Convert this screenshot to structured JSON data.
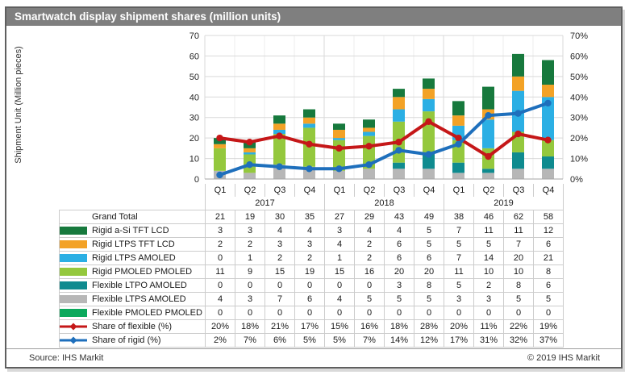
{
  "title": "Smartwatch display shipment shares (million units)",
  "footer": {
    "source": "Source: IHS Markit",
    "copyright": "© 2019 IHS Markit"
  },
  "chart_data": {
    "type": "combo",
    "subtype": "stacked-bar + line",
    "left_axis": {
      "label": "Shipment Unit (Million pieces)",
      "min": 0,
      "max": 70,
      "step": 10
    },
    "right_axis": {
      "min": 0,
      "max": 70,
      "step": 10,
      "format": "percent"
    },
    "grid": true,
    "year_groups": [
      {
        "year": "2017",
        "quarters": [
          "Q1",
          "Q2",
          "Q3",
          "Q4"
        ]
      },
      {
        "year": "2018",
        "quarters": [
          "Q1",
          "Q2",
          "Q3",
          "Q4"
        ]
      },
      {
        "year": "2019",
        "quarters": [
          "Q1",
          "Q2",
          "Q3",
          "Q4"
        ]
      }
    ],
    "grand_total": {
      "label": "Grand Total",
      "values": [
        21,
        19,
        30,
        35,
        27,
        29,
        43,
        49,
        38,
        46,
        62,
        58
      ]
    },
    "bar_series": [
      {
        "name": "Rigid a-Si TFT LCD",
        "color": "#17793d",
        "values": [
          3,
          3,
          4,
          4,
          3,
          4,
          4,
          5,
          7,
          11,
          11,
          12
        ]
      },
      {
        "name": "Rigid LTPS TFT LCD",
        "color": "#f3a226",
        "values": [
          2,
          2,
          3,
          3,
          4,
          2,
          6,
          5,
          5,
          5,
          7,
          6
        ]
      },
      {
        "name": "Rigid LTPS AMOLED",
        "color": "#2bafe4",
        "values": [
          0,
          1,
          2,
          2,
          1,
          2,
          6,
          6,
          7,
          14,
          20,
          21
        ]
      },
      {
        "name": "Rigid PMOLED PMOLED",
        "color": "#94c83d",
        "values": [
          11,
          9,
          15,
          19,
          15,
          16,
          20,
          20,
          11,
          10,
          10,
          8
        ]
      },
      {
        "name": "Flexible LTPO AMOLED",
        "color": "#0f8b8f",
        "values": [
          0,
          0,
          0,
          0,
          0,
          0,
          3,
          8,
          5,
          2,
          8,
          6
        ]
      },
      {
        "name": "Flexible LTPS AMOLED",
        "color": "#b7b7b7",
        "values": [
          4,
          3,
          7,
          6,
          4,
          5,
          5,
          5,
          3,
          3,
          5,
          5
        ]
      },
      {
        "name": "Flexible PMOLED PMOLED",
        "color": "#0ba95c",
        "values": [
          0,
          0,
          0,
          0,
          0,
          0,
          0,
          0,
          0,
          0,
          0,
          0
        ]
      }
    ],
    "stack_order_bottom_to_top": [
      "Flexible PMOLED PMOLED",
      "Flexible LTPS AMOLED",
      "Flexible LTPO AMOLED",
      "Rigid PMOLED PMOLED",
      "Rigid LTPS AMOLED",
      "Rigid LTPS TFT LCD",
      "Rigid a-Si TFT LCD"
    ],
    "line_series": [
      {
        "name": "Share of flexible (%)",
        "color": "#c51718",
        "values": [
          20,
          18,
          21,
          17,
          15,
          16,
          18,
          28,
          20,
          11,
          22,
          19
        ]
      },
      {
        "name": "Share of rigid (%)",
        "color": "#1e6fbc",
        "values": [
          2,
          7,
          6,
          5,
          5,
          7,
          14,
          12,
          17,
          31,
          32,
          37
        ]
      }
    ],
    "legend_position": "table-left"
  }
}
